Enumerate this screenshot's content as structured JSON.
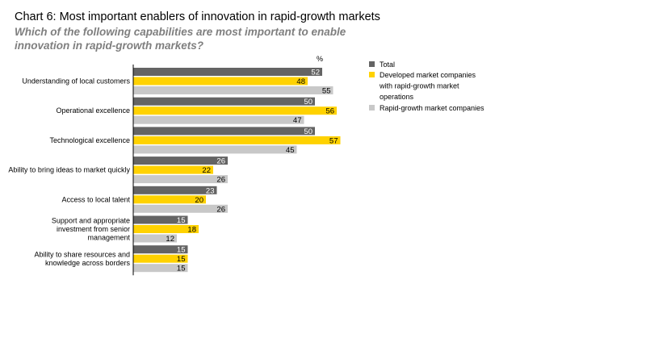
{
  "header": {
    "title": "Chart 6: Most important enablers of innovation in rapid-growth markets",
    "subtitle": "Which of the following capabilities are most important to enable innovation in rapid-growth markets?"
  },
  "chart_data": {
    "type": "bar",
    "orientation": "horizontal",
    "unit_label": "%",
    "categories": [
      [
        "Understanding of local customers"
      ],
      [
        "Operational excellence"
      ],
      [
        "Technological excellence"
      ],
      [
        "Ability to bring ideas to market quickly"
      ],
      [
        "Access to local talent"
      ],
      [
        "Support and appropriate",
        "investment from senior",
        "management"
      ],
      [
        "Ability to share resources and",
        "knowledge across borders"
      ]
    ],
    "series": [
      {
        "name": "Total",
        "values": [
          52,
          50,
          50,
          26,
          23,
          15,
          15
        ],
        "color": "#646464",
        "label_color": "#ffffff"
      },
      {
        "name": [
          "Developed market companies",
          "with rapid-growth market",
          "operations"
        ],
        "values": [
          48,
          56,
          57,
          22,
          20,
          18,
          15
        ],
        "color": "#ffd200",
        "label_color": "#000000"
      },
      {
        "name": "Rapid-growth market companies",
        "values": [
          55,
          47,
          45,
          26,
          26,
          12,
          15
        ],
        "color": "#c8c8c8",
        "label_color": "#000000"
      }
    ],
    "xlim": [
      0,
      100
    ],
    "grid": false,
    "legend_position": "right"
  }
}
